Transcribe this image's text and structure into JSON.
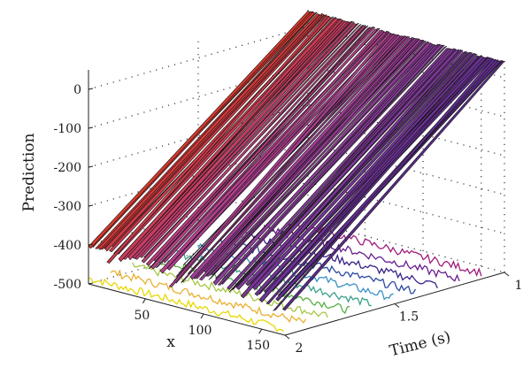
{
  "chart_data": {
    "type": "surface3d",
    "title": "",
    "zlabel": "Prediction",
    "xlabel": "x",
    "tlabel": "Time (s)",
    "z_ticks": [
      0,
      -100,
      -200,
      -300,
      -400,
      -500
    ],
    "x_ticks": [
      50,
      100,
      150
    ],
    "t_ticks": [
      1,
      1.5,
      2
    ],
    "zlim": [
      -500,
      50
    ],
    "xlim": [
      1,
      170
    ],
    "tlim": [
      1,
      2
    ],
    "grid": true,
    "surface": {
      "x_range": [
        1,
        170
      ],
      "t_range": [
        1,
        2
      ],
      "prediction_at_t_start": 40,
      "prediction_at_t_end": -400,
      "colormap": [
        "#5a2c8e",
        "#8a3d9c",
        "#b8408a",
        "#d8392e"
      ]
    },
    "contour_lines": {
      "colors": [
        "#e8d800",
        "#e8b030",
        "#a8c848",
        "#58b048",
        "#3aa088",
        "#3890c8",
        "#2c4aa0",
        "#3a2288",
        "#6a1c90",
        "#a01c7c"
      ]
    }
  }
}
